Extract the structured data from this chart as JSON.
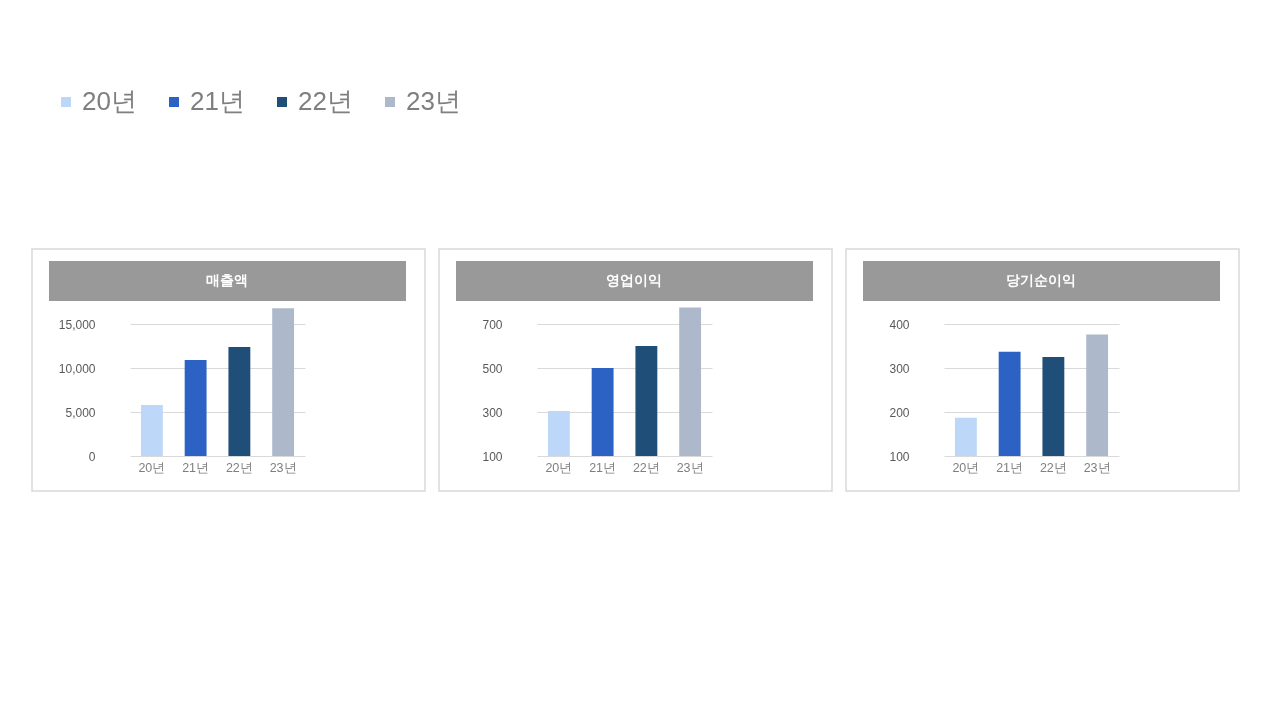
{
  "chart_data": [
    {
      "type": "bar",
      "title": "매출액",
      "categories": [
        "20년",
        "21년",
        "22년",
        "23년"
      ],
      "stacked": true,
      "series": [
        {
          "name": "20년",
          "color": "#bdd7f8",
          "values": [
            5800,
            null,
            null,
            null
          ]
        },
        {
          "name": "21년",
          "color": "#2b62c3",
          "values": [
            null,
            10900,
            null,
            null
          ]
        },
        {
          "name": "22년",
          "color": "#1f4e79",
          "values": [
            null,
            null,
            12400,
            null
          ]
        },
        {
          "name": "23년",
          "color": "#adb9ca",
          "values": [
            null,
            null,
            null,
            16800
          ]
        }
      ],
      "ylim": [
        0,
        17500
      ],
      "yticks": [
        0,
        {
          "value": 5000,
          "label": "5,000"
        },
        {
          "value": 10000,
          "label": "10,000"
        },
        {
          "value": 15000,
          "label": "15,000"
        }
      ],
      "grid": "y",
      "legend": "top"
    },
    {
      "type": "bar",
      "title": "영업이익",
      "categories": [
        "20년",
        "21년",
        "22년",
        "23년"
      ],
      "values": [
        305,
        500,
        600,
        775
      ],
      "colors": [
        "#bdd7f8",
        "#2b62c3",
        "#1f4e79",
        "#adb9ca"
      ],
      "ylim": [
        100,
        800
      ],
      "yticks": [
        100,
        300,
        500,
        700
      ],
      "grid": "y"
    },
    {
      "type": "bar",
      "title": "당기순이익",
      "categories": [
        "20년",
        "21년",
        "22년",
        "23년"
      ],
      "values": [
        187,
        337,
        325,
        376
      ],
      "colors": [
        "#bdd7f8",
        "#2b62c3",
        "#1f4e79",
        "#adb9ca"
      ],
      "ylim": [
        100,
        450
      ],
      "yticks": [
        100,
        200,
        300,
        400
      ],
      "grid": "y"
    }
  ]
}
